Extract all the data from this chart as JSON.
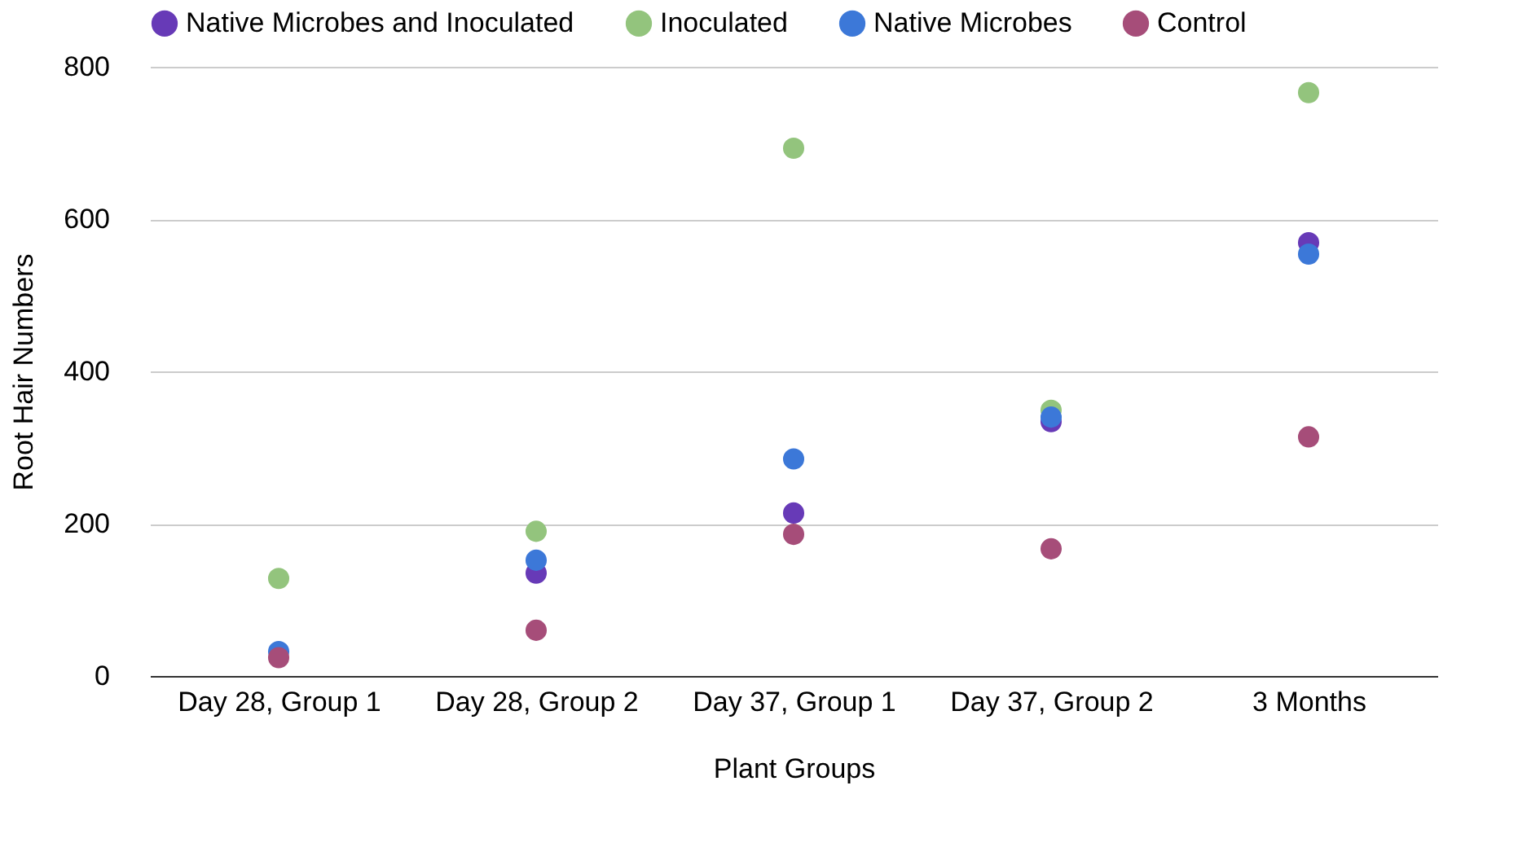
{
  "chart_data": {
    "type": "scatter",
    "xlabel": "Plant Groups",
    "ylabel": "Root Hair Numbers",
    "categories": [
      "Day 28, Group 1",
      "Day 28, Group 2",
      "Day 37, Group 1",
      "Day 37, Group 2",
      "3 Months"
    ],
    "series": [
      {
        "name": "Native Microbes and Inoculated",
        "color": "#673ab7",
        "values": [
          null,
          135,
          214,
          334,
          569
        ]
      },
      {
        "name": "Inoculated",
        "color": "#93c47d",
        "values": [
          128,
          190,
          693,
          349,
          766
        ]
      },
      {
        "name": "Native Microbes",
        "color": "#3c78d8",
        "values": [
          32,
          152,
          285,
          340,
          554
        ]
      },
      {
        "name": "Control",
        "color": "#a64d79",
        "values": [
          24,
          60,
          186,
          167,
          314
        ]
      }
    ],
    "ylim": [
      0,
      800
    ],
    "yticks": [
      0,
      200,
      400,
      600,
      800
    ],
    "grid": "y",
    "legend": "top",
    "marker": "circle"
  }
}
